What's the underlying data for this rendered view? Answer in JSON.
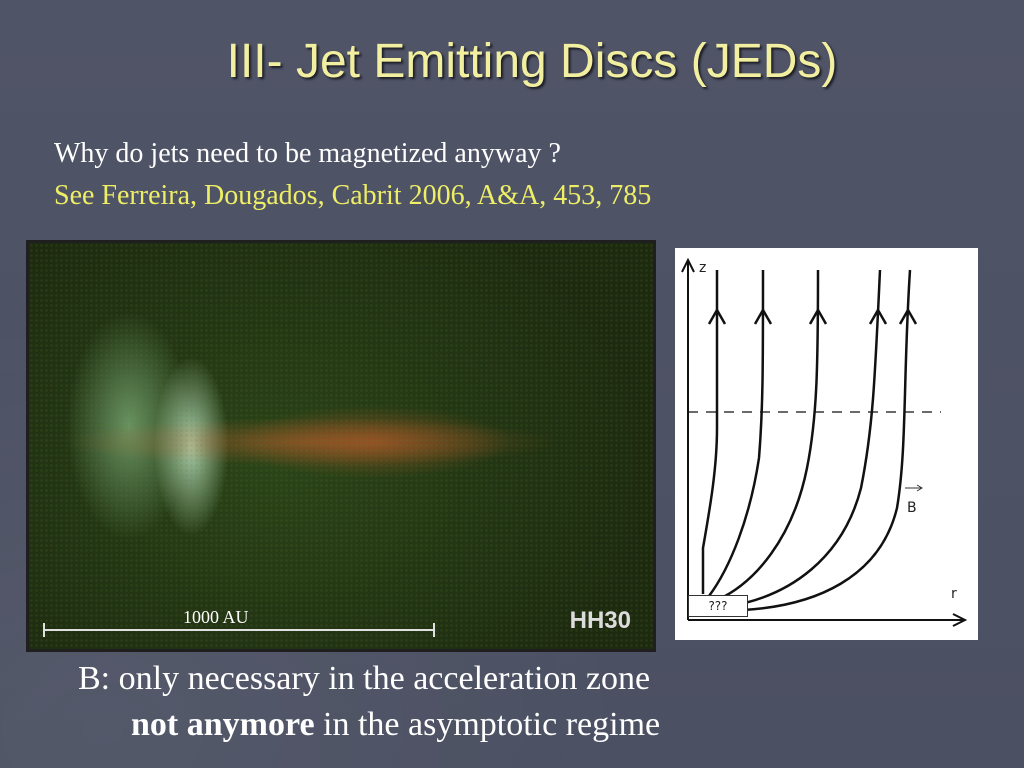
{
  "slide": {
    "title": "III- Jet Emitting Discs (JEDs)",
    "subtitle": "Why do jets need to be magnetized anyway ?",
    "reference": "See Ferreira, Dougados, Cabrit 2006, A&A, 453, 785",
    "image": {
      "scale_label": "1000 AU",
      "object_label": "HH30"
    },
    "diagram": {
      "axis_z": "z",
      "axis_r": "r",
      "field_label": "B",
      "unknown_label": "???"
    },
    "bottom": {
      "line1": "B: only necessary in the acceleration zone",
      "line2_bold": "not anymore",
      "line2_rest": " in the asymptotic regime"
    }
  }
}
